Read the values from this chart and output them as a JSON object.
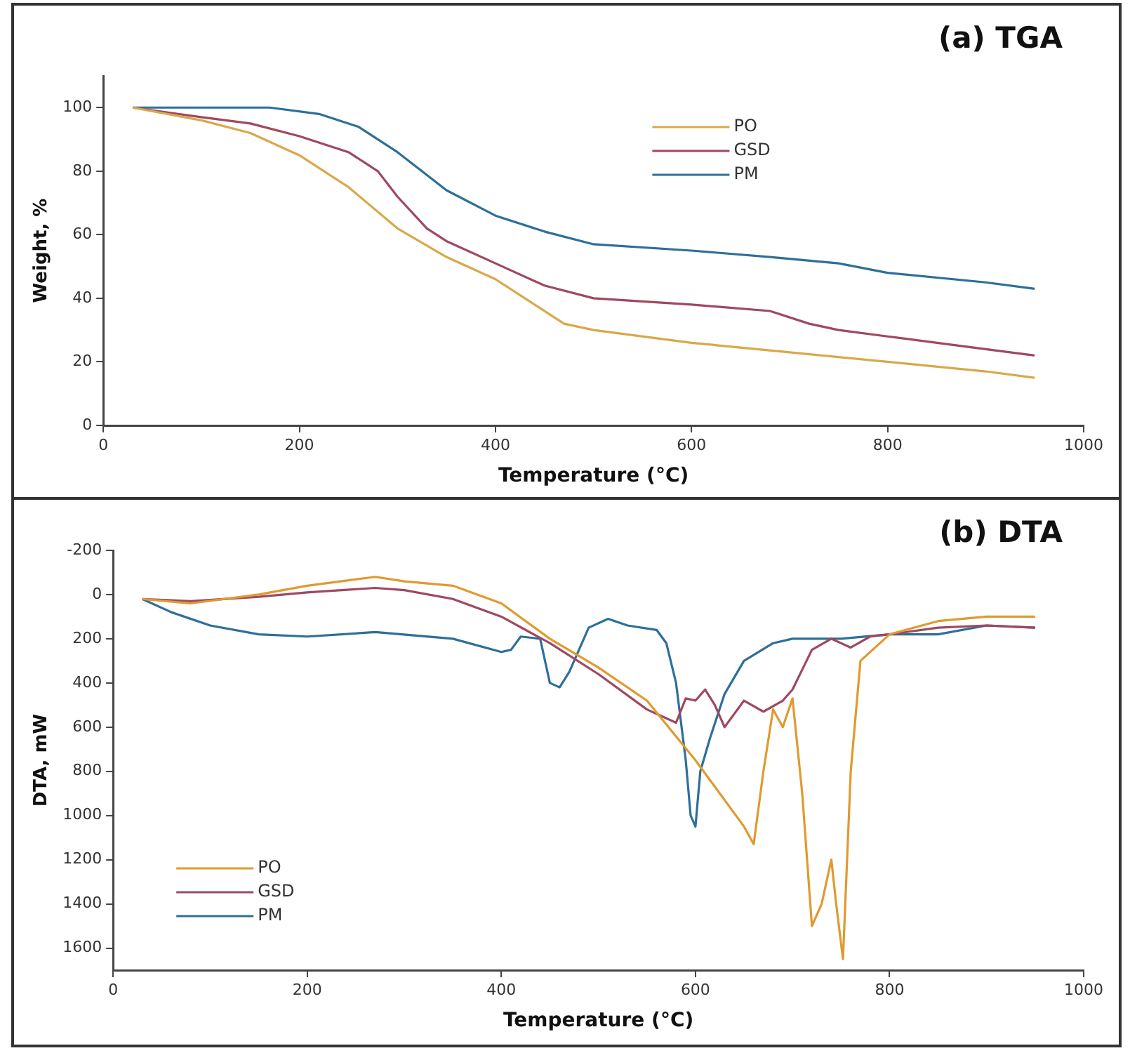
{
  "chart_data": [
    {
      "type": "line",
      "title": "(a) TGA",
      "xlabel": "Temperature (°C)",
      "ylabel": "Weight, %",
      "xlim": [
        0,
        1000
      ],
      "xticks": [
        0,
        200,
        400,
        600,
        800,
        1000
      ],
      "ylim": [
        0,
        110
      ],
      "yticks": [
        0,
        20,
        40,
        60,
        80,
        100
      ],
      "legend": "top right",
      "grid": false,
      "marker": "none",
      "series": [
        {
          "name": "PO",
          "color": "#d9a84a",
          "x": [
            30,
            100,
            150,
            200,
            250,
            300,
            350,
            400,
            430,
            470,
            500,
            600,
            700,
            800,
            900,
            950
          ],
          "values": [
            100,
            96,
            92,
            85,
            75,
            62,
            53,
            46,
            40,
            32,
            30,
            26,
            23,
            20,
            17,
            15
          ]
        },
        {
          "name": "GSD",
          "color": "#a04860",
          "x": [
            30,
            100,
            150,
            200,
            250,
            280,
            300,
            330,
            350,
            400,
            450,
            500,
            600,
            680,
            720,
            750,
            800,
            900,
            950
          ],
          "values": [
            100,
            97,
            95,
            91,
            86,
            80,
            72,
            62,
            58,
            51,
            44,
            40,
            38,
            36,
            32,
            30,
            28,
            24,
            22
          ]
        },
        {
          "name": "PM",
          "color": "#2e6f9a",
          "x": [
            30,
            100,
            170,
            220,
            260,
            300,
            350,
            400,
            450,
            500,
            600,
            680,
            750,
            800,
            900,
            950
          ],
          "values": [
            100,
            100,
            100,
            98,
            94,
            86,
            74,
            66,
            61,
            57,
            55,
            53,
            51,
            48,
            45,
            43
          ]
        }
      ]
    },
    {
      "type": "line",
      "title": "(b) DTA",
      "xlabel": "Temperature (°C)",
      "ylabel": "DTA, mW",
      "xlim": [
        0,
        1000
      ],
      "xticks": [
        0,
        200,
        400,
        600,
        800,
        1000
      ],
      "ylim": [
        1700,
        -200
      ],
      "yticks": [
        -200,
        0,
        200,
        400,
        600,
        800,
        1000,
        1200,
        1400,
        1600
      ],
      "legend": "bottom left",
      "grid": false,
      "marker": "none",
      "series": [
        {
          "name": "PO",
          "color": "#e09a30",
          "x": [
            30,
            80,
            150,
            200,
            270,
            300,
            350,
            400,
            450,
            500,
            550,
            600,
            650,
            660,
            670,
            680,
            690,
            700,
            710,
            720,
            730,
            740,
            745,
            752,
            760,
            770,
            800,
            850,
            900,
            950
          ],
          "values": [
            20,
            40,
            0,
            -40,
            -80,
            -60,
            -40,
            40,
            200,
            330,
            480,
            750,
            1050,
            1130,
            800,
            520,
            600,
            470,
            900,
            1500,
            1400,
            1200,
            1400,
            1650,
            800,
            300,
            180,
            120,
            100,
            100
          ]
        },
        {
          "name": "GSD",
          "color": "#a04860",
          "x": [
            30,
            80,
            150,
            200,
            270,
            300,
            350,
            400,
            450,
            500,
            550,
            580,
            590,
            600,
            610,
            620,
            630,
            650,
            670,
            690,
            700,
            720,
            740,
            760,
            780,
            800,
            850,
            900,
            950
          ],
          "values": [
            20,
            30,
            10,
            -10,
            -30,
            -20,
            20,
            100,
            220,
            360,
            520,
            580,
            470,
            480,
            430,
            500,
            600,
            480,
            530,
            480,
            430,
            250,
            200,
            240,
            190,
            180,
            150,
            140,
            150
          ]
        },
        {
          "name": "PM",
          "color": "#2e6f9a",
          "x": [
            30,
            60,
            100,
            150,
            200,
            270,
            350,
            400,
            410,
            420,
            440,
            450,
            460,
            470,
            480,
            490,
            510,
            530,
            560,
            570,
            580,
            590,
            595,
            600,
            605,
            615,
            630,
            650,
            680,
            700,
            750,
            800,
            850,
            900,
            950
          ],
          "values": [
            20,
            80,
            140,
            180,
            190,
            170,
            200,
            260,
            250,
            190,
            200,
            400,
            420,
            350,
            250,
            150,
            110,
            140,
            160,
            220,
            400,
            750,
            1000,
            1050,
            800,
            650,
            450,
            300,
            220,
            200,
            200,
            180,
            180,
            140,
            150
          ]
        }
      ]
    }
  ]
}
